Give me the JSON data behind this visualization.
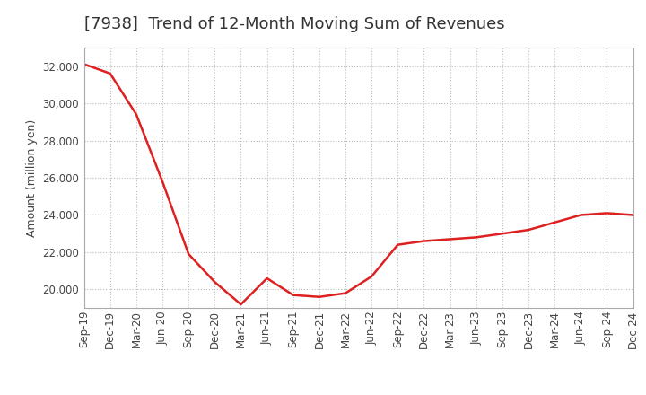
{
  "title": "[7938]  Trend of 12-Month Moving Sum of Revenues",
  "ylabel": "Amount (million yen)",
  "background_color": "#ffffff",
  "grid_color": "#bbbbbb",
  "line_color": "#dd2020",
  "x_labels": [
    "Sep-19",
    "Dec-19",
    "Mar-20",
    "Jun-20",
    "Sep-20",
    "Dec-20",
    "Mar-21",
    "Jun-21",
    "Sep-21",
    "Dec-21",
    "Mar-22",
    "Jun-22",
    "Sep-22",
    "Dec-22",
    "Mar-23",
    "Jun-23",
    "Sep-23",
    "Dec-23",
    "Mar-24",
    "Jun-24",
    "Sep-24",
    "Dec-24"
  ],
  "values": [
    32100,
    31600,
    29400,
    25800,
    21900,
    20400,
    19200,
    20600,
    19700,
    19600,
    19800,
    20700,
    22400,
    22600,
    22700,
    22800,
    23000,
    23200,
    23600,
    24000,
    24100,
    24000
  ],
  "ylim": [
    19000,
    33000
  ],
  "yticks": [
    20000,
    22000,
    24000,
    26000,
    28000,
    30000,
    32000
  ],
  "title_fontsize": 13,
  "label_fontsize": 9,
  "tick_fontsize": 8.5
}
